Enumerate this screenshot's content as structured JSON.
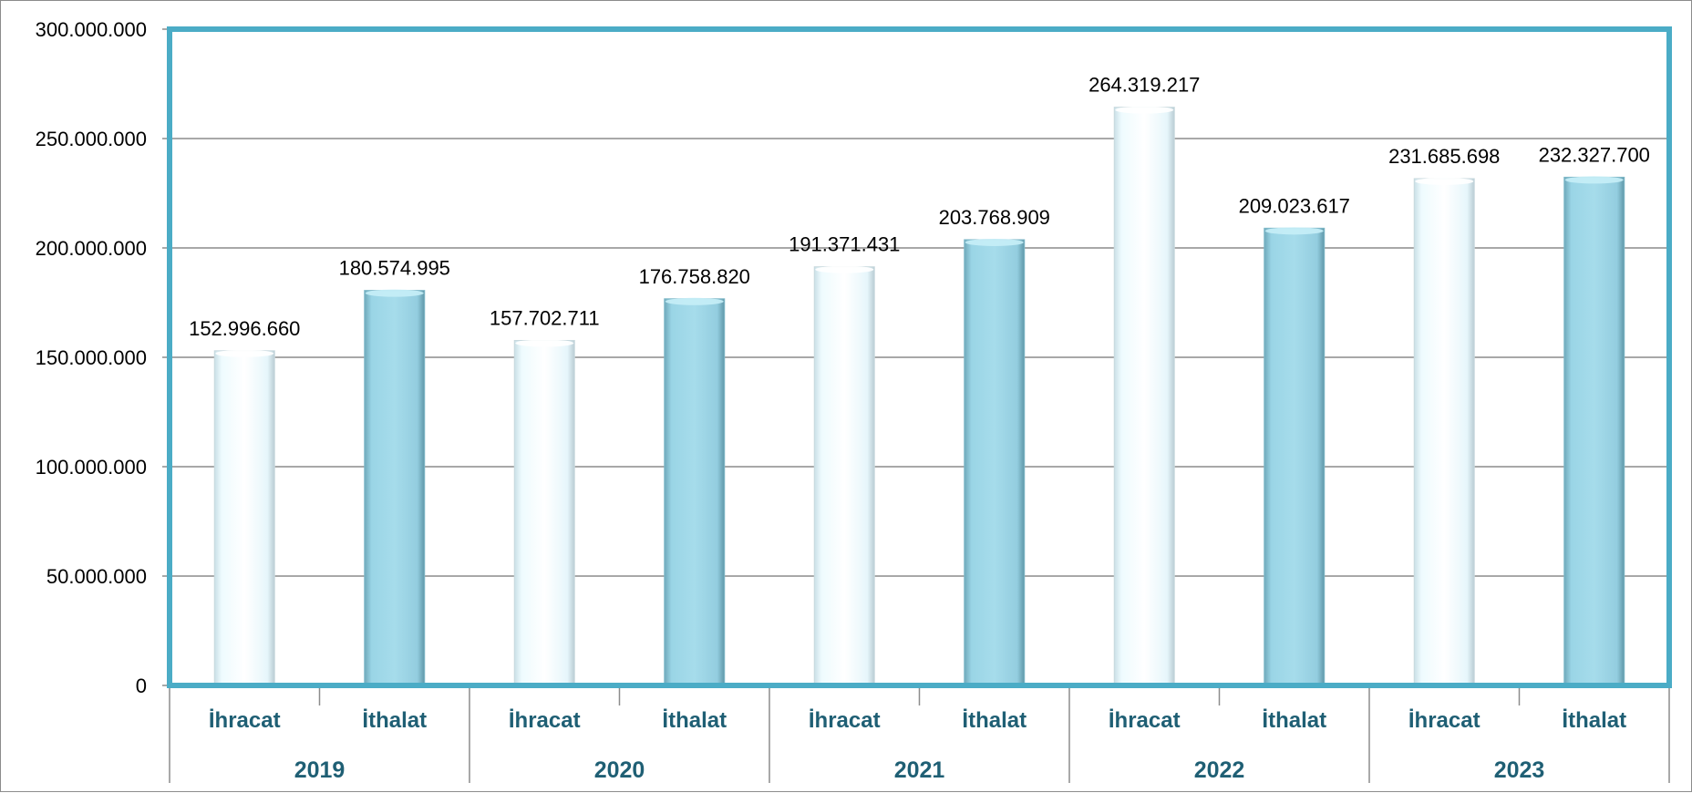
{
  "chart_data": {
    "type": "bar",
    "groups": [
      "2019",
      "2020",
      "2021",
      "2022",
      "2023"
    ],
    "categories": [
      "İhracat",
      "İthalat",
      "İhracat",
      "İthalat",
      "İhracat",
      "İthalat",
      "İhracat",
      "İthalat",
      "İhracat",
      "İthalat"
    ],
    "values": [
      152996660,
      180574995,
      157702711,
      176758820,
      191371431,
      203768909,
      264319217,
      209023617,
      231685698,
      232327700
    ],
    "value_labels": [
      "152.996.660",
      "180.574.995",
      "157.702.711",
      "176.758.820",
      "191.371.431",
      "203.768.909",
      "264.319.217",
      "209.023.617",
      "231.685.698",
      "232.327.700"
    ],
    "yticks": [
      0,
      50000000,
      100000000,
      150000000,
      200000000,
      250000000,
      300000000
    ],
    "ytick_labels": [
      "0",
      "50.000.000",
      "100.000.000",
      "150.000.000",
      "200.000.000",
      "250.000.000",
      "300.000.000"
    ],
    "ylim": [
      0,
      300000000
    ],
    "grid": true,
    "title": "",
    "xlabel": "",
    "ylabel": ""
  },
  "colors": {
    "ihracat_fill": "#e8f8fc",
    "ithalat_fill": "#9ed8e8",
    "plot_border": "#4bacc6",
    "gridline": "#8c8c8c",
    "category_text": "#1f5f74",
    "year_text": "#1f5f74"
  }
}
